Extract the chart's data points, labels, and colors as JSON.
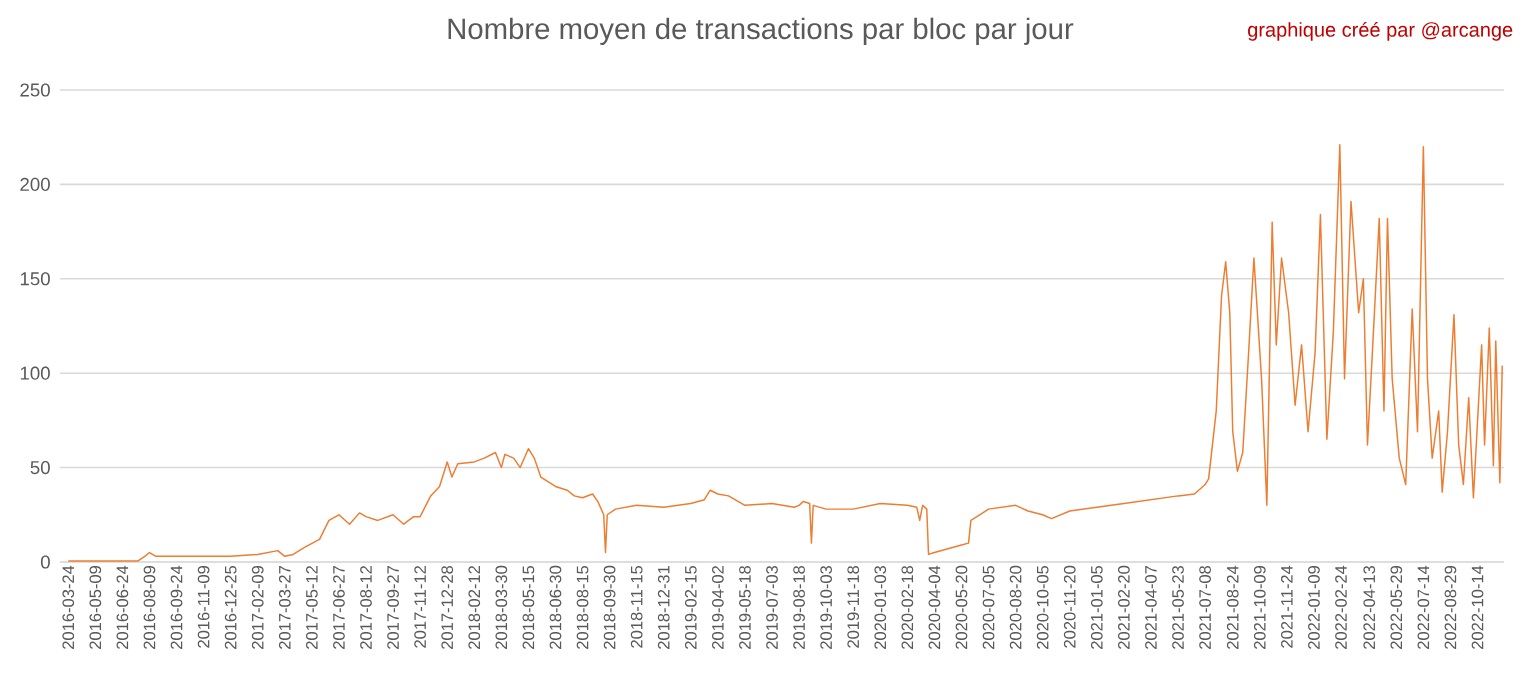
{
  "chart_data": {
    "type": "line",
    "title": "Nombre moyen de transactions par bloc par jour",
    "annotations": [
      "graphique créé par @arcange"
    ],
    "x": [
      "2016-03-24",
      "2016-07-20",
      "2016-08-01",
      "2016-08-09",
      "2016-08-20",
      "2016-10-15",
      "2016-12-25",
      "2017-02-09",
      "2017-03-15",
      "2017-03-27",
      "2017-04-10",
      "2017-05-01",
      "2017-05-25",
      "2017-06-10",
      "2017-06-27",
      "2017-07-15",
      "2017-08-01",
      "2017-08-12",
      "2017-09-01",
      "2017-09-27",
      "2017-10-15",
      "2017-11-01",
      "2017-11-12",
      "2017-11-30",
      "2017-12-15",
      "2017-12-28",
      "2018-01-05",
      "2018-01-15",
      "2018-02-12",
      "2018-03-01",
      "2018-03-20",
      "2018-03-30",
      "2018-04-05",
      "2018-04-20",
      "2018-05-01",
      "2018-05-15",
      "2018-05-25",
      "2018-06-05",
      "2018-06-20",
      "2018-06-30",
      "2018-07-20",
      "2018-08-01",
      "2018-08-15",
      "2018-09-01",
      "2018-09-10",
      "2018-09-20",
      "2018-09-23",
      "2018-09-26",
      "2018-10-10",
      "2018-11-15",
      "2018-12-31",
      "2019-02-15",
      "2019-03-10",
      "2019-03-20",
      "2019-04-02",
      "2019-04-20",
      "2019-05-18",
      "2019-07-03",
      "2019-08-10",
      "2019-08-18",
      "2019-08-25",
      "2019-09-05",
      "2019-09-08",
      "2019-09-11",
      "2019-10-03",
      "2019-11-18",
      "2020-01-03",
      "2020-02-18",
      "2020-03-05",
      "2020-03-10",
      "2020-03-15",
      "2020-03-22",
      "2020-03-25",
      "2020-04-04",
      "2020-05-20",
      "2020-06-01",
      "2020-06-05",
      "2020-06-20",
      "2020-07-05",
      "2020-08-20",
      "2020-09-10",
      "2020-10-05",
      "2020-10-20",
      "2020-11-20",
      "2021-01-05",
      "2021-02-20",
      "2021-04-07",
      "2021-05-23",
      "2021-06-20",
      "2021-07-08",
      "2021-07-14",
      "2021-07-27",
      "2021-08-05",
      "2021-08-12",
      "2021-08-19",
      "2021-08-24",
      "2021-09-01",
      "2021-09-10",
      "2021-09-20",
      "2021-09-29",
      "2021-10-12",
      "2021-10-21",
      "2021-10-30",
      "2021-11-06",
      "2021-11-15",
      "2021-11-27",
      "2021-12-08",
      "2021-12-19",
      "2021-12-30",
      "2022-01-11",
      "2022-01-20",
      "2022-01-31",
      "2022-02-11",
      "2022-02-22",
      "2022-03-02",
      "2022-03-13",
      "2022-03-26",
      "2022-04-03",
      "2022-04-10",
      "2022-04-19",
      "2022-04-30",
      "2022-05-08",
      "2022-05-14",
      "2022-05-22",
      "2022-06-03",
      "2022-06-14",
      "2022-06-25",
      "2022-07-04",
      "2022-07-14",
      "2022-07-21",
      "2022-07-29",
      "2022-08-09",
      "2022-08-15",
      "2022-08-24",
      "2022-09-04",
      "2022-09-12",
      "2022-09-20",
      "2022-09-29",
      "2022-10-07",
      "2022-10-15",
      "2022-10-21",
      "2022-10-26",
      "2022-11-03",
      "2022-11-10",
      "2022-11-14",
      "2022-11-21",
      "2022-11-25"
    ],
    "values": [
      0.5,
      0.5,
      3,
      5,
      3,
      3,
      3,
      4,
      6,
      3,
      4,
      8,
      12,
      22,
      25,
      20,
      26,
      24,
      22,
      25,
      20,
      24,
      24,
      35,
      40,
      53,
      45,
      52,
      53,
      55,
      58,
      50,
      57,
      55,
      50,
      60,
      55,
      45,
      42,
      40,
      38,
      35,
      34,
      36,
      32,
      25,
      5,
      25,
      28,
      30,
      29,
      31,
      33,
      38,
      36,
      35,
      30,
      31,
      29,
      30,
      32,
      31,
      10,
      30,
      28,
      28,
      31,
      30,
      29,
      22,
      30,
      28,
      4,
      5,
      9,
      10,
      22,
      25,
      28,
      30,
      27,
      25,
      23,
      27,
      29,
      31,
      33,
      35,
      36,
      41,
      44,
      80,
      141,
      159,
      132,
      69,
      48,
      58,
      111,
      161,
      97,
      30,
      180,
      115,
      161,
      132,
      83,
      115,
      69,
      111,
      184,
      65,
      122,
      221,
      97,
      191,
      132,
      150,
      62,
      115,
      182,
      80,
      182,
      97,
      55,
      41,
      134,
      69,
      220,
      97,
      55,
      80,
      37,
      69,
      131,
      62,
      41,
      87,
      34,
      80,
      115,
      62,
      124,
      51,
      117,
      42,
      104
    ],
    "color": "#ed7d31",
    "xlim": [
      "2016-03-10",
      "2022-11-28"
    ],
    "ylim": [
      0,
      250
    ],
    "yticks": [
      0,
      50,
      100,
      150,
      200,
      250
    ],
    "grid": "y",
    "xticks": [
      "2016-03-24",
      "2016-05-09",
      "2016-06-24",
      "2016-08-09",
      "2016-09-24",
      "2016-11-09",
      "2016-12-25",
      "2017-02-09",
      "2017-03-27",
      "2017-05-12",
      "2017-06-27",
      "2017-08-12",
      "2017-09-27",
      "2017-11-12",
      "2017-12-28",
      "2018-02-12",
      "2018-03-30",
      "2018-05-15",
      "2018-06-30",
      "2018-08-15",
      "2018-09-30",
      "2018-11-15",
      "2018-12-31",
      "2019-02-15",
      "2019-04-02",
      "2019-05-18",
      "2019-07-03",
      "2019-08-18",
      "2019-10-03",
      "2019-11-18",
      "2020-01-03",
      "2020-02-18",
      "2020-04-04",
      "2020-05-20",
      "2020-07-05",
      "2020-08-20",
      "2020-10-05",
      "2020-11-20",
      "2021-01-05",
      "2021-02-20",
      "2021-04-07",
      "2021-05-23",
      "2021-07-08",
      "2021-08-24",
      "2021-10-09",
      "2021-11-24",
      "2022-01-09",
      "2022-02-24",
      "2022-04-13",
      "2022-05-29",
      "2022-07-14",
      "2022-08-29",
      "2022-10-14"
    ]
  }
}
